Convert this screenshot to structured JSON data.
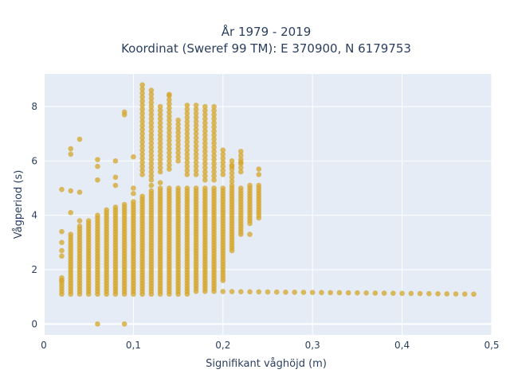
{
  "chart_data": {
    "type": "scatter",
    "title_lines": [
      "År 1979 - 2019",
      "Koordinat (Sweref 99 TM): E 370900, N 6179753"
    ],
    "xlabel": "Signifikant våghöjd (m)",
    "ylabel": "Vågperiod (s)",
    "xlim": [
      0,
      0.5
    ],
    "ylim": [
      -0.4,
      9.2
    ],
    "x_ticks": [
      0,
      0.1,
      0.2,
      0.3,
      0.4,
      0.5
    ],
    "x_tick_labels": [
      "0",
      "0,1",
      "0,2",
      "0,3",
      "0,4",
      "0,5"
    ],
    "y_ticks": [
      0,
      2,
      4,
      6,
      8
    ],
    "y_tick_labels": [
      "0",
      "2",
      "4",
      "6",
      "8"
    ],
    "grid": true,
    "background": "#e5ecf6",
    "marker_color": "#d4a52a",
    "marker_opacity": 0.75,
    "columns": [
      {
        "x": 0.02,
        "low": 1.1,
        "high": 1.7
      },
      {
        "x": 0.03,
        "low": 1.1,
        "high": 3.3
      },
      {
        "x": 0.04,
        "low": 1.1,
        "high": 3.6
      },
      {
        "x": 0.05,
        "low": 1.1,
        "high": 3.8
      },
      {
        "x": 0.06,
        "low": 1.1,
        "high": 4.0
      },
      {
        "x": 0.07,
        "low": 1.1,
        "high": 4.1
      },
      {
        "x": 0.08,
        "low": 1.1,
        "high": 4.3
      },
      {
        "x": 0.09,
        "low": 1.1,
        "high": 4.4
      },
      {
        "x": 0.1,
        "low": 1.1,
        "high": 4.5
      },
      {
        "x": 0.11,
        "low": 1.1,
        "high": 4.7
      },
      {
        "x": 0.12,
        "low": 1.1,
        "high": 4.9
      },
      {
        "x": 0.13,
        "low": 1.1,
        "high": 5.0
      },
      {
        "x": 0.14,
        "low": 1.1,
        "high": 5.0
      },
      {
        "x": 0.15,
        "low": 1.1,
        "high": 5.0
      },
      {
        "x": 0.16,
        "low": 1.1,
        "high": 5.0
      },
      {
        "x": 0.17,
        "low": 1.2,
        "high": 5.0
      },
      {
        "x": 0.18,
        "low": 1.2,
        "high": 5.0
      },
      {
        "x": 0.19,
        "low": 1.3,
        "high": 5.0
      },
      {
        "x": 0.2,
        "low": 1.6,
        "high": 5.0
      },
      {
        "x": 0.21,
        "low": 2.7,
        "high": 5.0
      },
      {
        "x": 0.22,
        "low": 3.3,
        "high": 5.0
      },
      {
        "x": 0.23,
        "low": 3.7,
        "high": 5.1
      },
      {
        "x": 0.24,
        "low": 4.0,
        "high": 5.1
      }
    ],
    "upper_columns": [
      {
        "x": 0.11,
        "low": 5.5,
        "high": 8.8
      },
      {
        "x": 0.12,
        "low": 5.3,
        "high": 8.7
      },
      {
        "x": 0.13,
        "low": 5.6,
        "high": 8.0
      },
      {
        "x": 0.14,
        "low": 5.7,
        "high": 8.5
      },
      {
        "x": 0.15,
        "low": 6.0,
        "high": 7.6
      },
      {
        "x": 0.16,
        "low": 5.5,
        "high": 8.1
      },
      {
        "x": 0.17,
        "low": 5.5,
        "high": 8.1
      },
      {
        "x": 0.18,
        "low": 5.3,
        "high": 8.1
      },
      {
        "x": 0.19,
        "low": 5.3,
        "high": 8.0
      },
      {
        "x": 0.2,
        "low": 5.5,
        "high": 6.5
      },
      {
        "x": 0.21,
        "low": 5.1,
        "high": 6.0
      },
      {
        "x": 0.22,
        "low": 5.6,
        "high": 6.3
      }
    ],
    "tail": {
      "x_start": 0.19,
      "x_end": 0.48,
      "x_step": 0.01,
      "y_start": 1.2,
      "y_end": 1.1
    },
    "outliers": [
      {
        "x": 0.02,
        "y": 4.95
      },
      {
        "x": 0.02,
        "y": 3.4
      },
      {
        "x": 0.02,
        "y": 3.0
      },
      {
        "x": 0.02,
        "y": 2.7
      },
      {
        "x": 0.02,
        "y": 2.5
      },
      {
        "x": 0.02,
        "y": 1.6
      },
      {
        "x": 0.03,
        "y": 6.45
      },
      {
        "x": 0.03,
        "y": 6.25
      },
      {
        "x": 0.03,
        "y": 4.9
      },
      {
        "x": 0.03,
        "y": 4.1
      },
      {
        "x": 0.04,
        "y": 6.8
      },
      {
        "x": 0.04,
        "y": 4.85
      },
      {
        "x": 0.04,
        "y": 3.8
      },
      {
        "x": 0.06,
        "y": 6.05
      },
      {
        "x": 0.06,
        "y": 5.8
      },
      {
        "x": 0.06,
        "y": 5.3
      },
      {
        "x": 0.06,
        "y": 0.0
      },
      {
        "x": 0.07,
        "y": 4.2
      },
      {
        "x": 0.08,
        "y": 6.0
      },
      {
        "x": 0.08,
        "y": 5.4
      },
      {
        "x": 0.08,
        "y": 5.1
      },
      {
        "x": 0.09,
        "y": 7.8
      },
      {
        "x": 0.09,
        "y": 7.7
      },
      {
        "x": 0.09,
        "y": 0.0
      },
      {
        "x": 0.1,
        "y": 6.15
      },
      {
        "x": 0.1,
        "y": 5.0
      },
      {
        "x": 0.1,
        "y": 4.8
      },
      {
        "x": 0.12,
        "y": 5.1
      },
      {
        "x": 0.13,
        "y": 5.2
      },
      {
        "x": 0.14,
        "y": 8.45
      },
      {
        "x": 0.21,
        "y": 5.8
      },
      {
        "x": 0.22,
        "y": 6.35
      },
      {
        "x": 0.22,
        "y": 5.95
      },
      {
        "x": 0.23,
        "y": 3.3
      },
      {
        "x": 0.24,
        "y": 5.7
      },
      {
        "x": 0.24,
        "y": 5.5
      },
      {
        "x": 0.24,
        "y": 3.9
      }
    ]
  }
}
